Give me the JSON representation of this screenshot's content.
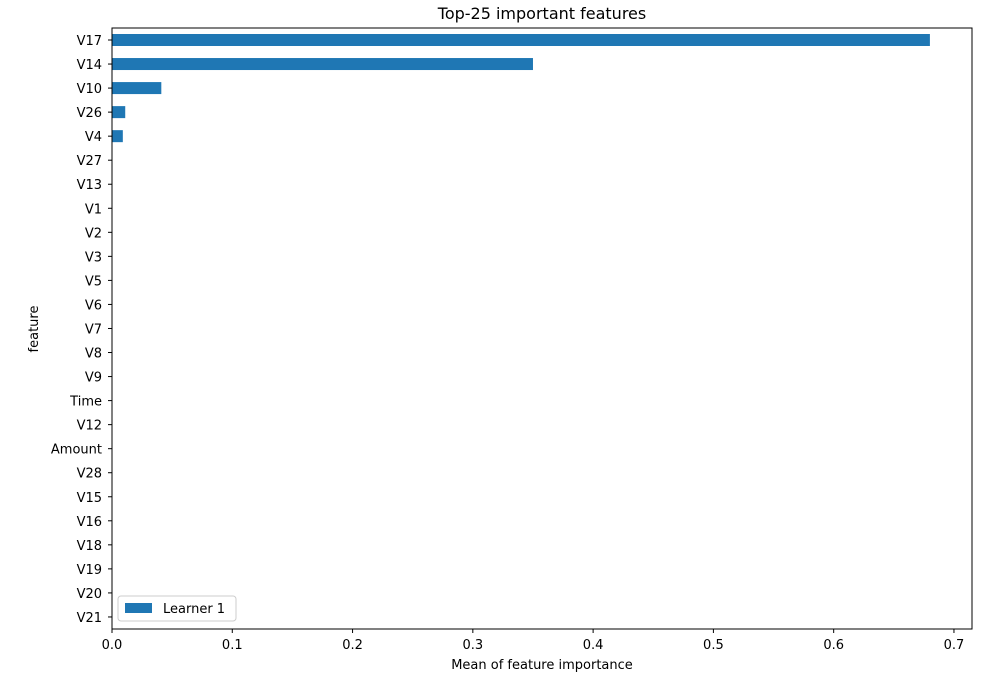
{
  "chart_data": {
    "type": "bar",
    "orientation": "horizontal",
    "title": "Top-25 important features",
    "xlabel": "Mean of feature importance",
    "ylabel": "feature",
    "xlim": [
      0,
      0.715
    ],
    "xticks": [
      0.0,
      0.1,
      0.2,
      0.3,
      0.4,
      0.5,
      0.6,
      0.7
    ],
    "xtick_labels": [
      "0.0",
      "0.1",
      "0.2",
      "0.3",
      "0.4",
      "0.5",
      "0.6",
      "0.7"
    ],
    "categories": [
      "V17",
      "V14",
      "V10",
      "V26",
      "V4",
      "V27",
      "V13",
      "V1",
      "V2",
      "V3",
      "V5",
      "V6",
      "V7",
      "V8",
      "V9",
      "Time",
      "V12",
      "Amount",
      "V28",
      "V15",
      "V16",
      "V18",
      "V19",
      "V20",
      "V21"
    ],
    "series": [
      {
        "name": "Learner 1",
        "color": "#1f77b4",
        "values": [
          0.68,
          0.35,
          0.041,
          0.011,
          0.009,
          0,
          0,
          0,
          0,
          0,
          0,
          0,
          0,
          0,
          0,
          0,
          0,
          0,
          0,
          0,
          0,
          0,
          0,
          0,
          0
        ]
      }
    ],
    "legend_position": "lower-left",
    "grid": false
  }
}
